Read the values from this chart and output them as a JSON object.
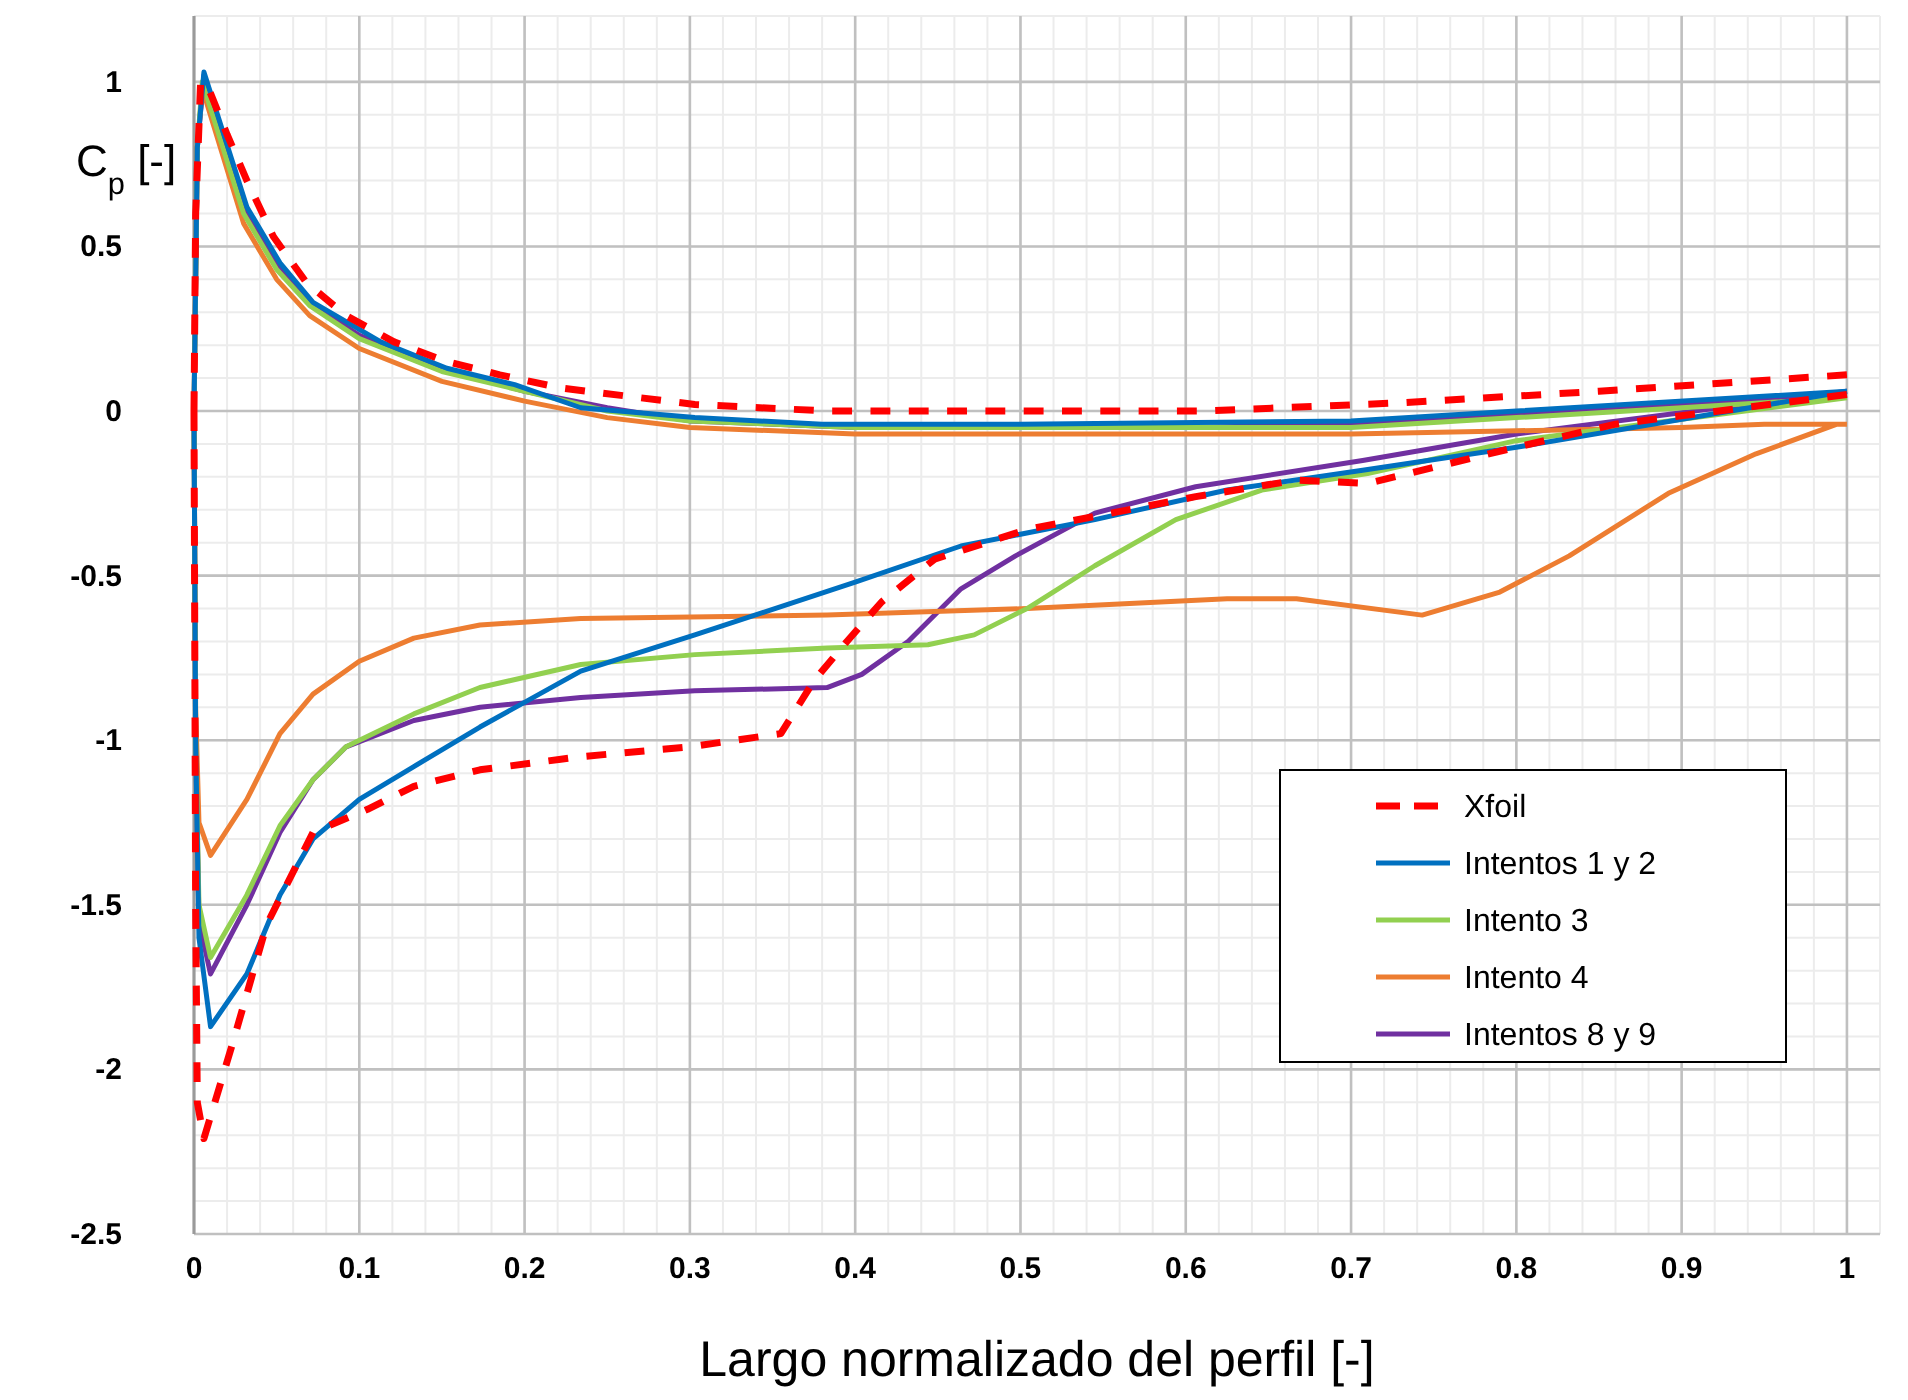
{
  "chart_data": {
    "type": "line",
    "xlabel": "Largo normalizado del perfil [-]",
    "ylabel": "C$_{p}$ [-]",
    "xlim": [
      0,
      1.02
    ],
    "ylim": [
      -2.5,
      1.2
    ],
    "xticks": [
      0,
      0.1,
      0.2,
      0.3,
      0.4,
      0.5,
      0.6,
      0.7,
      0.8,
      0.9,
      1
    ],
    "yticks": [
      -2.5,
      -2,
      -1.5,
      -1,
      -0.5,
      0,
      0.5,
      1
    ],
    "grid": true,
    "legend": "right",
    "marker": "none",
    "series": [
      {
        "name": "Xfoil",
        "color": "#ff0000",
        "line_style": "dashed",
        "x": [
          0,
          0.001,
          0.004,
          0.008,
          0.02,
          0.032,
          0.048,
          0.068,
          0.092,
          0.121,
          0.153,
          0.185,
          0.222,
          0.303,
          0.383,
          0.5,
          0.61,
          0.73,
          0.85,
          1.0,
          null,
          0,
          0.001,
          0.002,
          0.006,
          0.024,
          0.044,
          0.072,
          0.105,
          0.133,
          0.173,
          0.234,
          0.3,
          0.355,
          0.375,
          0.395,
          0.416,
          0.448,
          0.504,
          0.545,
          0.606,
          0.667,
          0.71,
          0.8,
          0.86,
          1.0
        ],
        "values": [
          0,
          0.6,
          1.0,
          0.99,
          0.84,
          0.7,
          0.53,
          0.39,
          0.29,
          0.21,
          0.15,
          0.11,
          0.07,
          0.02,
          0.0,
          0.0,
          0.0,
          0.025,
          0.06,
          0.11,
          null,
          0,
          -1.5,
          -2.1,
          -2.21,
          -1.91,
          -1.56,
          -1.28,
          -1.21,
          -1.14,
          -1.09,
          -1.05,
          -1.02,
          -0.98,
          -0.82,
          -0.7,
          -0.58,
          -0.45,
          -0.36,
          -0.32,
          -0.26,
          -0.21,
          -0.22,
          -0.11,
          -0.04,
          0.05
        ]
      },
      {
        "name": "Intentos 1 y 2",
        "color": "#0070c0",
        "line_style": "solid",
        "x": [
          0,
          0.002,
          0.006,
          0.032,
          0.052,
          0.072,
          0.113,
          0.153,
          0.194,
          0.234,
          0.303,
          0.38,
          0.5,
          0.7,
          0.8,
          1.0,
          null,
          0,
          0.001,
          0.003,
          0.01,
          0.032,
          0.052,
          0.072,
          0.1,
          0.133,
          0.173,
          0.234,
          0.303,
          0.4,
          0.464,
          0.545,
          0.625,
          0.707,
          0.8,
          1.0
        ],
        "values": [
          0,
          0.8,
          1.03,
          0.62,
          0.45,
          0.33,
          0.21,
          0.13,
          0.08,
          0.01,
          -0.02,
          -0.04,
          -0.04,
          -0.03,
          0.0,
          0.06,
          null,
          0,
          -1.0,
          -1.6,
          -1.87,
          -1.71,
          -1.47,
          -1.3,
          -1.18,
          -1.08,
          -0.96,
          -0.79,
          -0.68,
          -0.52,
          -0.41,
          -0.33,
          -0.24,
          -0.18,
          -0.11,
          0.06
        ]
      },
      {
        "name": "Intento 3",
        "color": "#92d050",
        "line_style": "solid",
        "x": [
          0,
          0.002,
          0.005,
          0.03,
          0.05,
          0.07,
          0.1,
          0.15,
          0.2,
          0.25,
          0.3,
          0.4,
          0.6,
          0.7,
          0.8,
          0.9,
          1.0,
          null,
          0,
          0.001,
          0.003,
          0.01,
          0.032,
          0.052,
          0.072,
          0.092,
          0.133,
          0.173,
          0.234,
          0.303,
          0.383,
          0.444,
          0.472,
          0.504,
          0.545,
          0.594,
          0.646,
          0.71,
          0.8,
          1.0
        ],
        "values": [
          0,
          0.8,
          1.0,
          0.6,
          0.43,
          0.32,
          0.22,
          0.12,
          0.06,
          0.0,
          -0.03,
          -0.05,
          -0.05,
          -0.05,
          -0.02,
          0.01,
          0.04,
          null,
          0,
          -1.0,
          -1.5,
          -1.66,
          -1.47,
          -1.26,
          -1.12,
          -1.02,
          -0.92,
          -0.84,
          -0.77,
          -0.74,
          -0.72,
          -0.71,
          -0.68,
          -0.6,
          -0.47,
          -0.33,
          -0.24,
          -0.19,
          -0.09,
          0.04
        ]
      },
      {
        "name": "Intento 4",
        "color": "#ed7d31",
        "line_style": "solid",
        "x": [
          0,
          0.002,
          0.005,
          0.03,
          0.05,
          0.07,
          0.1,
          0.15,
          0.2,
          0.25,
          0.3,
          0.4,
          0.5,
          0.7,
          0.8,
          0.9,
          0.95,
          1.0,
          null,
          0,
          0.001,
          0.003,
          0.01,
          0.032,
          0.052,
          0.072,
          0.1,
          0.133,
          0.173,
          0.234,
          0.383,
          0.504,
          0.625,
          0.667,
          0.743,
          0.79,
          0.832,
          0.892,
          0.945,
          0.994
        ],
        "values": [
          0,
          0.8,
          0.98,
          0.57,
          0.4,
          0.29,
          0.19,
          0.09,
          0.03,
          -0.02,
          -0.05,
          -0.07,
          -0.07,
          -0.07,
          -0.06,
          -0.05,
          -0.04,
          -0.04,
          null,
          0,
          -0.9,
          -1.25,
          -1.35,
          -1.18,
          -0.98,
          -0.86,
          -0.76,
          -0.69,
          -0.65,
          -0.63,
          -0.62,
          -0.6,
          -0.57,
          -0.57,
          -0.62,
          -0.55,
          -0.44,
          -0.25,
          -0.13,
          -0.04
        ]
      },
      {
        "name": "Intentos 8 y 9",
        "color": "#7030a0",
        "line_style": "solid",
        "x": [
          0,
          0.002,
          0.006,
          0.03,
          0.05,
          0.07,
          0.1,
          0.15,
          0.2,
          0.25,
          0.3,
          0.4,
          0.6,
          0.7,
          0.8,
          0.9,
          1.0,
          null,
          0,
          0.001,
          0.003,
          0.01,
          0.032,
          0.052,
          0.072,
          0.092,
          0.133,
          0.173,
          0.234,
          0.303,
          0.383,
          0.404,
          0.432,
          0.464,
          0.497,
          0.545,
          0.606,
          0.707,
          0.8,
          1.0
        ],
        "values": [
          0,
          0.8,
          1.02,
          0.62,
          0.45,
          0.33,
          0.23,
          0.13,
          0.06,
          0.01,
          -0.03,
          -0.05,
          -0.05,
          -0.04,
          -0.01,
          0.02,
          0.05,
          null,
          0,
          -1.0,
          -1.55,
          -1.71,
          -1.5,
          -1.28,
          -1.12,
          -1.02,
          -0.94,
          -0.9,
          -0.87,
          -0.85,
          -0.84,
          -0.8,
          -0.7,
          -0.54,
          -0.44,
          -0.31,
          -0.23,
          -0.15,
          -0.07,
          0.06
        ]
      }
    ]
  }
}
